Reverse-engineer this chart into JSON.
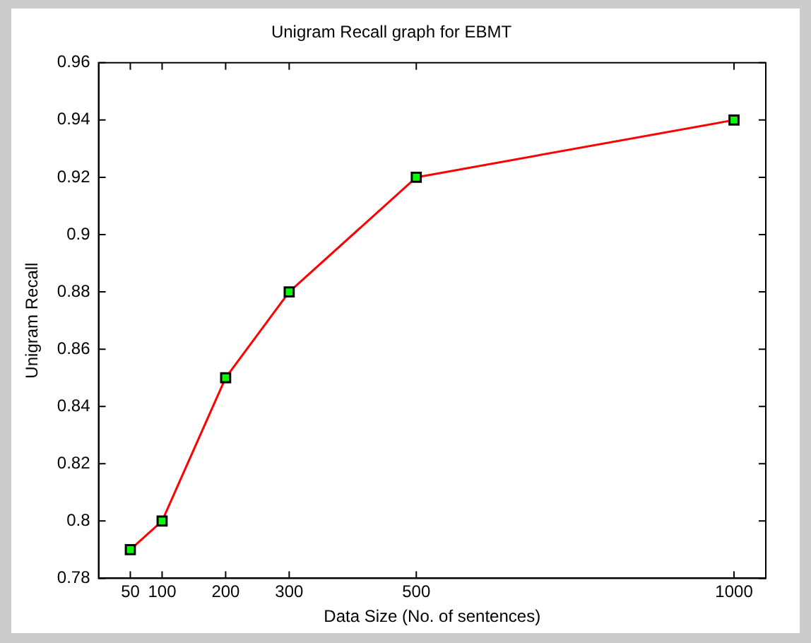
{
  "chart_data": {
    "type": "line",
    "title": "Unigram Recall graph for EBMT",
    "xlabel": "Data Size (No. of sentences)",
    "ylabel": "Unigram Recall",
    "x": [
      50,
      100,
      200,
      300,
      500,
      1000
    ],
    "series": [
      {
        "color": "#ff0000",
        "values": [
          0.79,
          0.8,
          0.85,
          0.88,
          0.92,
          0.94
        ]
      }
    ],
    "xlim": [
      0,
      1050
    ],
    "xticks": [
      50,
      100,
      200,
      300,
      500,
      1000
    ],
    "ylim": [
      0.78,
      0.96
    ],
    "yticks": [
      0.78,
      0.8,
      0.82,
      0.84,
      0.86,
      0.88,
      0.9,
      0.92,
      0.94,
      0.96
    ],
    "grid": false,
    "legend": false,
    "marker": "square",
    "line_style": "solid"
  }
}
